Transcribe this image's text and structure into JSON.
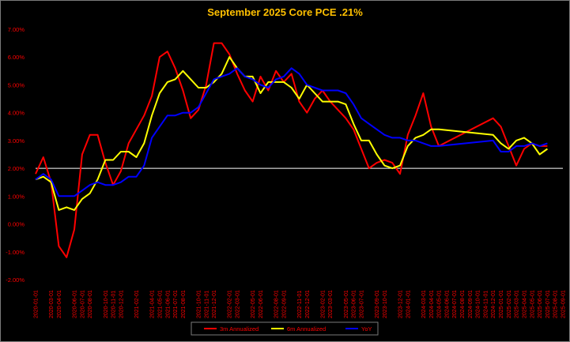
{
  "chart_data": {
    "type": "line",
    "title": "September 2025 Core PCE .21%",
    "ylim": [
      -2.0,
      7.0
    ],
    "y_ticks": [
      "-2.00%",
      "-1.00%",
      "0.00%",
      "1.00%",
      "2.00%",
      "3.00%",
      "4.00%",
      "5.00%",
      "6.00%",
      "7.00%"
    ],
    "reference_line": 2.0,
    "x": [
      "2020-01-01",
      "2020-02-01",
      "2020-03-01",
      "2020-04-01",
      "2020-05-01",
      "2020-06-01",
      "2020-07-01",
      "2020-08-01",
      "2020-09-01",
      "2020-10-01",
      "2020-11-01",
      "2020-12-01",
      "2021-01-01",
      "2021-02-01",
      "2021-03-01",
      "2021-04-01",
      "2021-05-01",
      "2021-06-01",
      "2021-07-01",
      "2021-08-01",
      "2021-09-01",
      "2021-10-01",
      "2021-11-01",
      "2021-12-01",
      "2022-01-01",
      "2022-02-01",
      "2022-03-01",
      "2022-04-01",
      "2022-05-01",
      "2022-06-01",
      "2022-07-01",
      "2022-08-01",
      "2022-09-01",
      "2022-10-01",
      "2022-11-01",
      "2022-12-01",
      "2023-01-01",
      "2023-02-01",
      "2023-03-01",
      "2023-04-01",
      "2023-05-01",
      "2023-06-01",
      "2023-07-01",
      "2023-08-01",
      "2023-09-01",
      "2023-10-01",
      "2023-11-01",
      "2023-12-01",
      "2024-01-01",
      "2024-02-01",
      "2024-03-01",
      "2024-04-01",
      "2024-05-01",
      "2024-06-01",
      "2024-07-01",
      "2024-08-01",
      "2024-09-01",
      "2024-10-01",
      "2024-11-01",
      "2024-12-01",
      "2025-01-01",
      "2025-02-01",
      "2025-03-01",
      "2025-04-01",
      "2025-05-01",
      "2025-06-01",
      "2025-07-01",
      "2025-08-01",
      "2025-09-01"
    ],
    "x_tick_labels": [
      "2020-01-01",
      "2020-03-01",
      "2020-04-01",
      "2020-06-01",
      "2020-07-01",
      "2020-08-01",
      "2020-10-01",
      "2020-11-01",
      "2020-12-01",
      "2021-02-01",
      "2021-04-01",
      "2021-05-01",
      "2021-06-01",
      "2021-07-01",
      "2021-08-01",
      "2021-10-01",
      "2021-11-01",
      "2021-12-01",
      "2022-02-01",
      "2022-03-01",
      "2022-05-01",
      "2022-06-01",
      "2022-08-01",
      "2022-09-01",
      "2022-11-01",
      "2022-12-01",
      "2023-02-01",
      "2023-03-01",
      "2023-05-01",
      "2023-06-01",
      "2023-07-01",
      "2023-09-01",
      "2023-10-01",
      "2023-12-01",
      "2024-01-01",
      "2024-03-01",
      "2024-04-01",
      "2024-05-01",
      "2024-06-01",
      "2024-07-01",
      "2024-08-01",
      "2024-09-01",
      "2024-10-01",
      "2024-11-01",
      "2024-12-01",
      "2025-01-01",
      "2025-02-01",
      "2025-03-01",
      "2025-04-01",
      "2025-05-01",
      "2025-06-01",
      "2025-07-01",
      "2025-08-01",
      "2025-09-01"
    ],
    "series": [
      {
        "name": "3m Annualized",
        "color": "#ff0000",
        "values": [
          1.8,
          2.4,
          1.5,
          -0.8,
          -1.2,
          -0.2,
          2.5,
          3.2,
          3.2,
          2.2,
          1.4,
          1.9,
          2.9,
          3.4,
          3.9,
          4.6,
          6.0,
          6.2,
          5.6,
          4.8,
          3.8,
          4.1,
          5.0,
          6.5,
          6.5,
          6.1,
          5.4,
          4.8,
          4.4,
          5.3,
          4.8,
          5.5,
          5.1,
          5.4,
          4.4,
          4.0,
          4.5,
          4.8,
          4.4,
          4.1,
          3.8,
          3.4,
          2.7,
          2.0,
          2.2,
          2.3,
          2.2,
          1.8,
          3.2,
          3.9,
          4.7,
          3.5,
          2.8,
          null,
          null,
          null,
          null,
          null,
          null,
          3.8,
          3.5,
          2.8,
          2.1,
          2.7,
          2.9,
          2.8,
          2.8,
          null,
          null
        ],
        "values_note": ""
      },
      {
        "name": "6m Annualized",
        "color": "#ffff00",
        "values": [
          1.6,
          1.7,
          1.5,
          0.5,
          0.6,
          0.5,
          0.9,
          1.1,
          1.6,
          2.3,
          2.3,
          2.6,
          2.6,
          2.4,
          2.9,
          3.9,
          4.7,
          5.1,
          5.2,
          5.5,
          5.2,
          4.9,
          4.9,
          5.1,
          5.4,
          6.0,
          5.6,
          5.3,
          5.3,
          4.7,
          5.1,
          5.1,
          5.1,
          4.9,
          4.5,
          5.0,
          4.7,
          4.4,
          4.4,
          4.4,
          4.3,
          3.6,
          3.0,
          3.0,
          2.5,
          2.1,
          2.0,
          2.1,
          2.8,
          3.1,
          3.2,
          3.4,
          3.4,
          null,
          null,
          null,
          null,
          null,
          null,
          3.2,
          2.9,
          2.7,
          3.0,
          3.1,
          2.9,
          2.5,
          2.7,
          null,
          null
        ]
      },
      {
        "name": "YoY",
        "color": "#0000ff",
        "values": [
          1.6,
          1.8,
          1.6,
          1.0,
          1.0,
          1.0,
          1.2,
          1.4,
          1.5,
          1.4,
          1.4,
          1.5,
          1.7,
          1.7,
          2.1,
          3.1,
          3.5,
          3.9,
          3.9,
          4.0,
          4.0,
          4.2,
          4.7,
          5.2,
          5.3,
          5.4,
          5.6,
          5.3,
          5.2,
          5.0,
          4.9,
          5.2,
          5.3,
          5.6,
          5.4,
          5.0,
          4.9,
          4.8,
          4.8,
          4.8,
          4.7,
          4.3,
          3.8,
          3.6,
          3.4,
          3.2,
          3.1,
          3.1,
          3.0,
          3.0,
          2.9,
          2.8,
          2.8,
          null,
          null,
          null,
          null,
          null,
          null,
          3.0,
          2.6,
          2.6,
          2.8,
          2.8,
          2.9,
          2.8,
          2.9,
          null,
          null
        ]
      }
    ],
    "legend_position": "bottom-center",
    "grid": false
  }
}
